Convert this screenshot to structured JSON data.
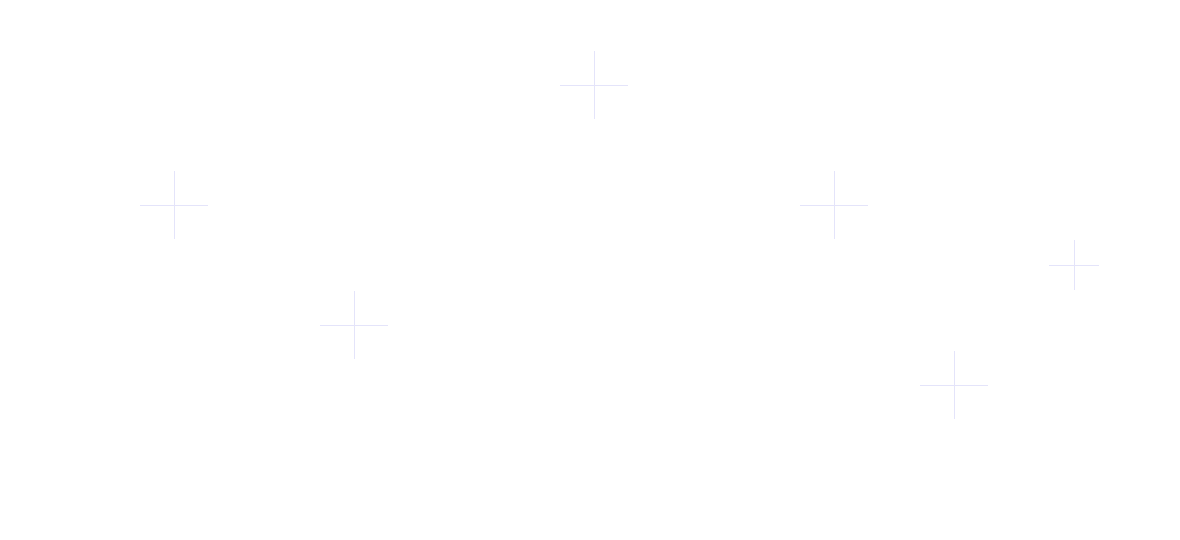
{
  "decoration": {
    "icon": "plus-icon",
    "color": "#e4e4fa"
  }
}
